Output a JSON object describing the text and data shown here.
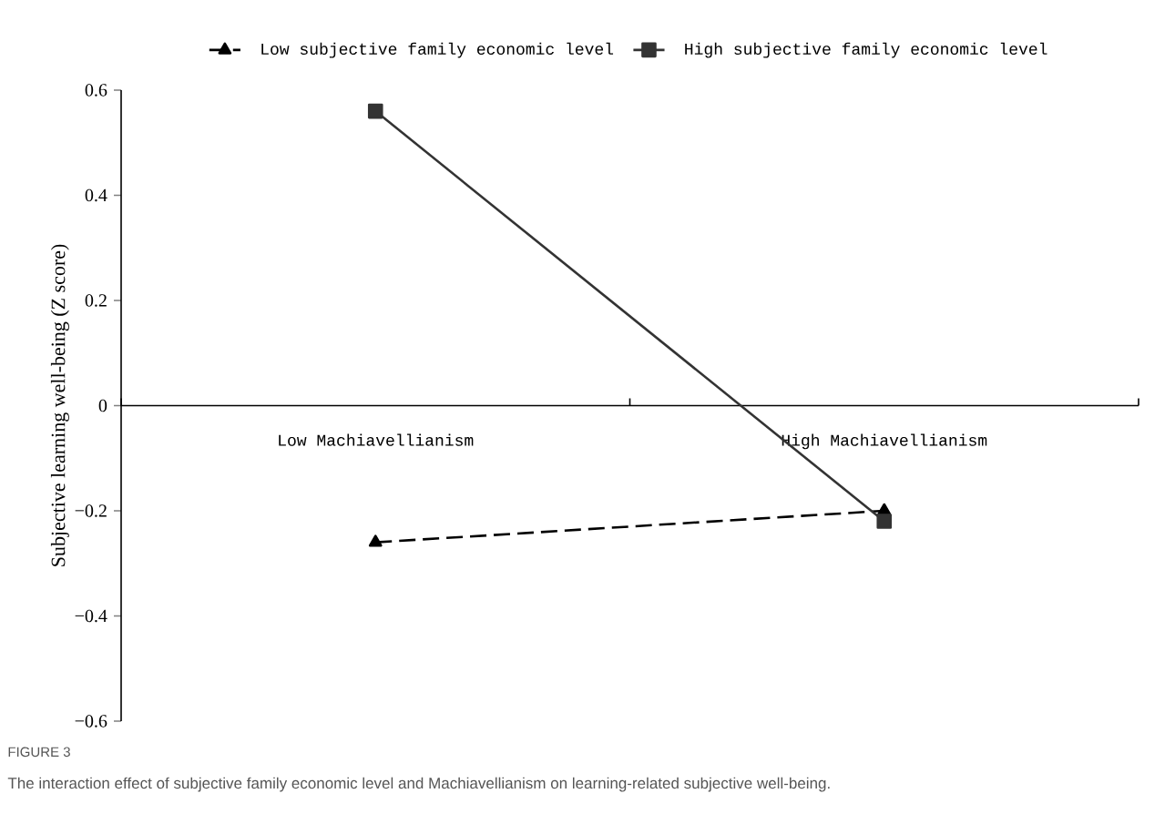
{
  "chart_data": {
    "type": "line",
    "categories": [
      "Low Machiavellianism",
      "High Machiavellianism"
    ],
    "ylabel": "Subjective learning well-being (Z score)",
    "ylim": [
      -0.6,
      0.6
    ],
    "yticks": [
      {
        "value": -0.6,
        "label": "−0.6"
      },
      {
        "value": -0.4,
        "label": "−0.4"
      },
      {
        "value": -0.2,
        "label": "−0.2"
      },
      0,
      0.2,
      0.4,
      0.6
    ],
    "series": [
      {
        "name": "Low subjective family economic level",
        "color": "#000000",
        "values": [
          -0.26,
          -0.2
        ],
        "marker": "triangle",
        "line_style": "dashed"
      },
      {
        "name": "High subjective family economic level",
        "color": "#333333",
        "values": [
          0.56,
          -0.22
        ],
        "marker": "square",
        "line_style": "solid"
      }
    ],
    "legend": "top",
    "grid": false,
    "annotations": [
      "FIGURE 3",
      "The interaction effect of subjective family economic level and Machiavellianism on learning-related subjective well-being."
    ]
  }
}
